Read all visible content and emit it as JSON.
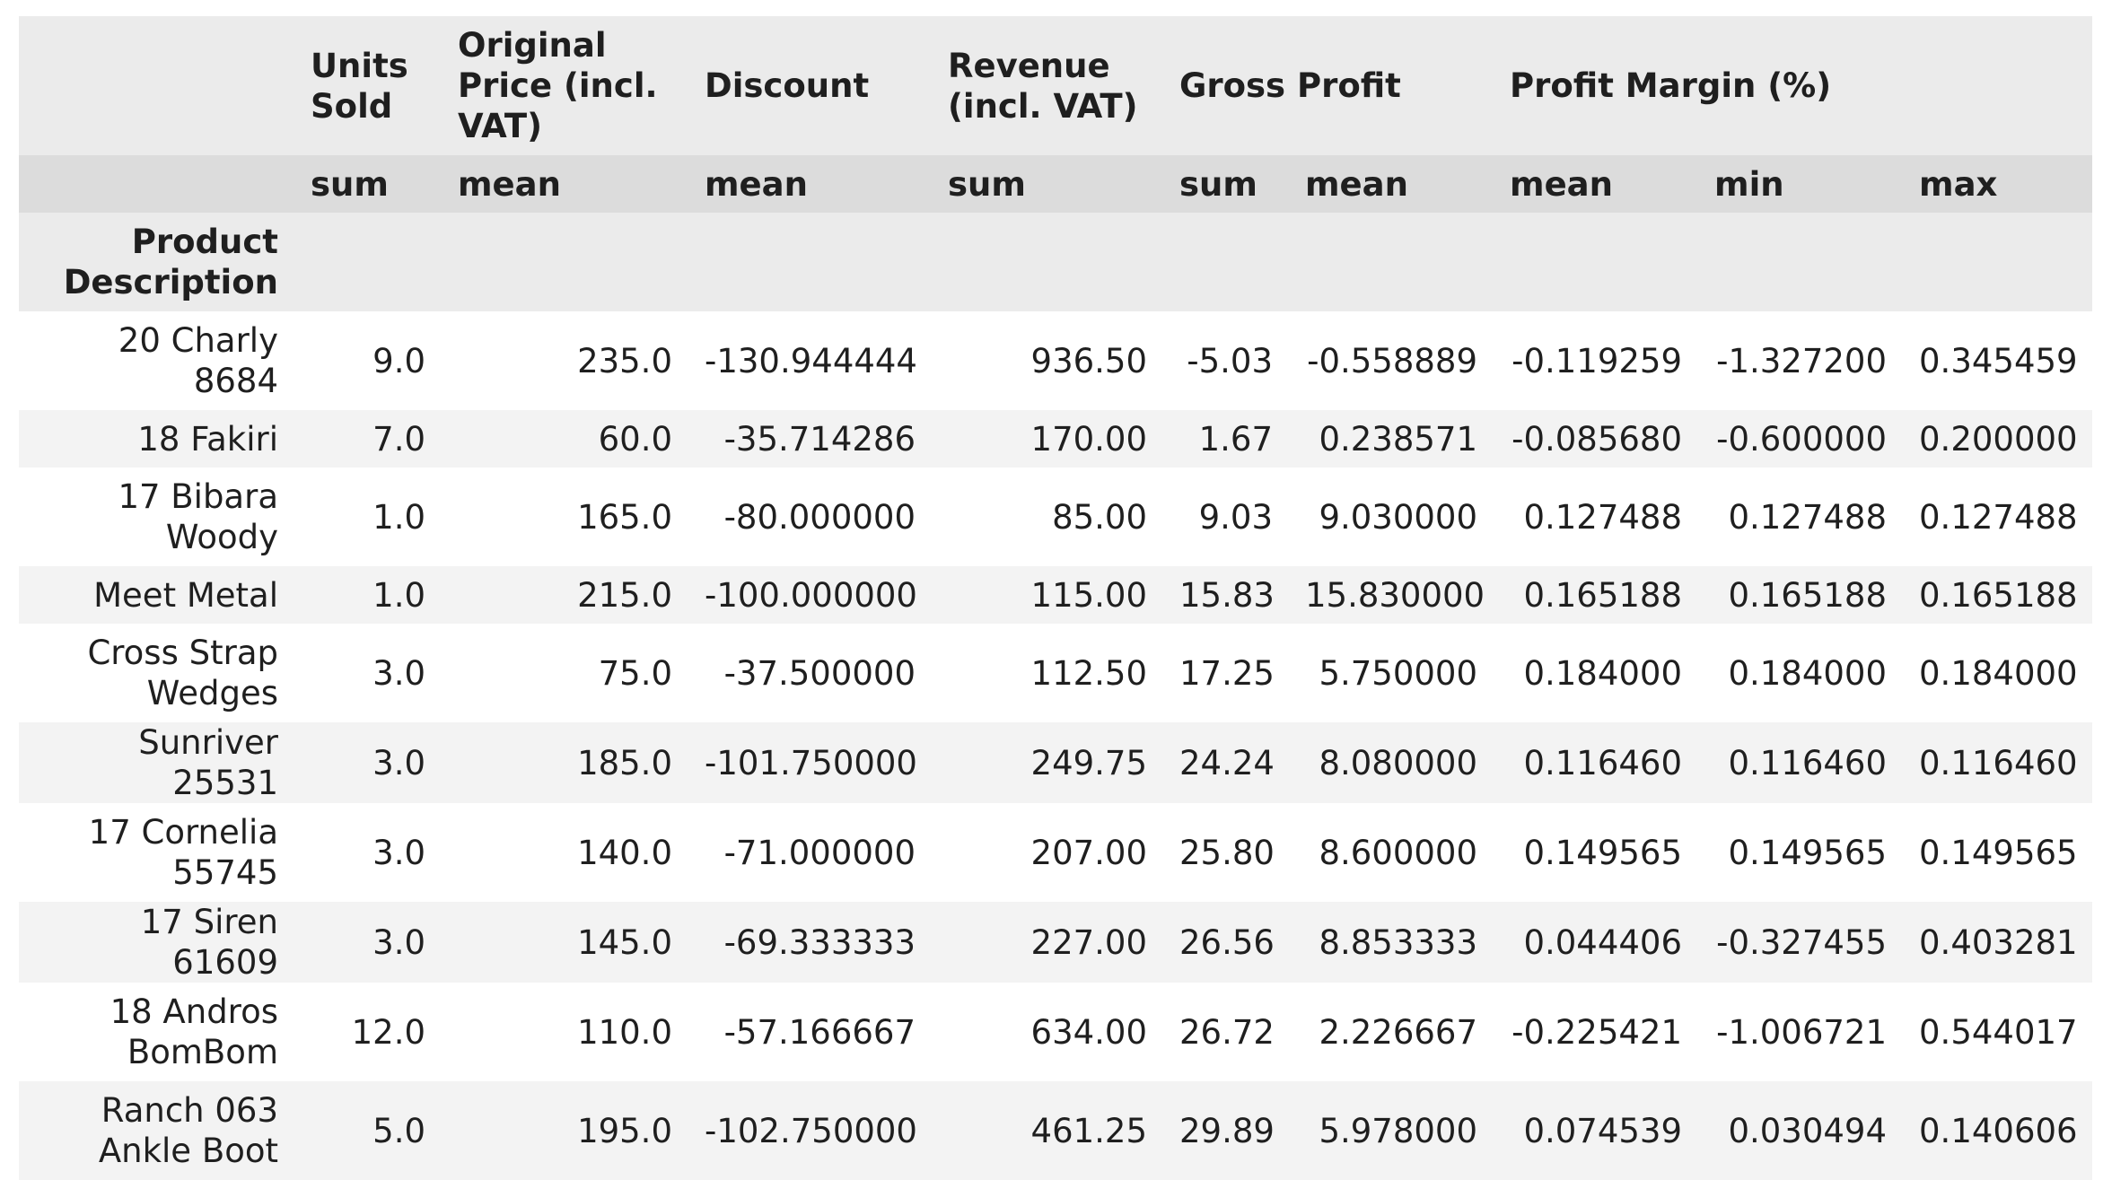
{
  "columns_level0": [
    "",
    "Units Sold",
    "Original Price (incl. VAT)",
    "Discount",
    "Revenue (incl. VAT)",
    "Gross Profit",
    "Profit Margin (%)"
  ],
  "columns_level1": [
    "",
    "sum",
    "mean",
    "mean",
    "sum",
    "sum",
    "mean",
    "mean",
    "min",
    "max"
  ],
  "index_name": "Product Description",
  "rows": [
    {
      "label": "20 Charly 8684",
      "values": [
        "9.0",
        "235.0",
        "-130.944444",
        "936.50",
        "-5.03",
        "-0.558889",
        "-0.119259",
        "-1.327200",
        "0.345459"
      ]
    },
    {
      "label": "18 Fakiri",
      "values": [
        "7.0",
        "60.0",
        "-35.714286",
        "170.00",
        "1.67",
        "0.238571",
        "-0.085680",
        "-0.600000",
        "0.200000"
      ]
    },
    {
      "label": "17 Bibara Woody",
      "values": [
        "1.0",
        "165.0",
        "-80.000000",
        "85.00",
        "9.03",
        "9.030000",
        "0.127488",
        "0.127488",
        "0.127488"
      ]
    },
    {
      "label": "Meet Metal",
      "values": [
        "1.0",
        "215.0",
        "-100.000000",
        "115.00",
        "15.83",
        "15.830000",
        "0.165188",
        "0.165188",
        "0.165188"
      ]
    },
    {
      "label": "Cross Strap Wedges",
      "values": [
        "3.0",
        "75.0",
        "-37.500000",
        "112.50",
        "17.25",
        "5.750000",
        "0.184000",
        "0.184000",
        "0.184000"
      ]
    },
    {
      "label": "Sunriver 25531",
      "values": [
        "3.0",
        "185.0",
        "-101.750000",
        "249.75",
        "24.24",
        "8.080000",
        "0.116460",
        "0.116460",
        "0.116460"
      ]
    },
    {
      "label": "17 Cornelia 55745",
      "values": [
        "3.0",
        "140.0",
        "-71.000000",
        "207.00",
        "25.80",
        "8.600000",
        "0.149565",
        "0.149565",
        "0.149565"
      ]
    },
    {
      "label": "17 Siren 61609",
      "values": [
        "3.0",
        "145.0",
        "-69.333333",
        "227.00",
        "26.56",
        "8.853333",
        "0.044406",
        "-0.327455",
        "0.403281"
      ]
    },
    {
      "label": "18 Andros BomBom",
      "values": [
        "12.0",
        "110.0",
        "-57.166667",
        "634.00",
        "26.72",
        "2.226667",
        "-0.225421",
        "-1.006721",
        "0.544017"
      ]
    },
    {
      "label": "Ranch 063 Ankle Boot",
      "values": [
        "5.0",
        "195.0",
        "-102.750000",
        "461.25",
        "29.89",
        "5.978000",
        "0.074539",
        "0.030494",
        "0.140606"
      ]
    }
  ]
}
